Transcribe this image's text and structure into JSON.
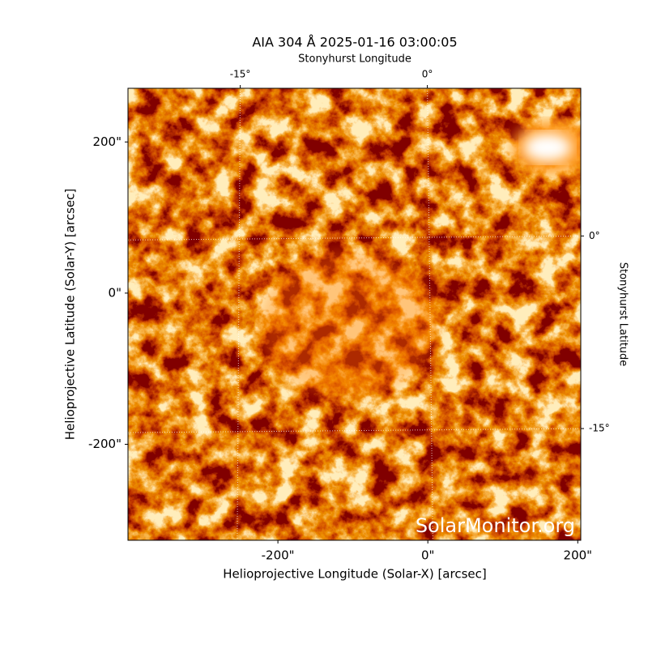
{
  "chart_data": {
    "type": "image",
    "title": "AIA 304 Å 2025-01-16 03:00:05",
    "xlabel": "Helioprojective Longitude (Solar-X) [arcsec]",
    "ylabel": "Helioprojective Latitude (Solar-Y) [arcsec]",
    "x2label": "Stonyhurst Longitude",
    "y2label": "Stonyhurst Latitude",
    "watermark": "SolarMonitor.org",
    "xlim": [
      -400,
      204
    ],
    "ylim": [
      -327,
      271
    ],
    "xticks": [
      {
        "value": -200,
        "label": "-200\""
      },
      {
        "value": 0,
        "label": "0\""
      },
      {
        "value": 200,
        "label": "200\""
      }
    ],
    "yticks": [
      {
        "value": -200,
        "label": "-200\""
      },
      {
        "value": 0,
        "label": "0\""
      },
      {
        "value": 200,
        "label": "200\""
      }
    ],
    "x2lim": [
      -24.0,
      12.3
    ],
    "y2lim": [
      -23.7,
      11.5
    ],
    "x2ticks": [
      {
        "value": -15,
        "label": "-15°"
      },
      {
        "value": 0,
        "label": "0°"
      }
    ],
    "y2ticks": [
      {
        "value": 0,
        "label": "0°"
      },
      {
        "value": -15,
        "label": "-15°"
      }
    ],
    "grid": true
  }
}
